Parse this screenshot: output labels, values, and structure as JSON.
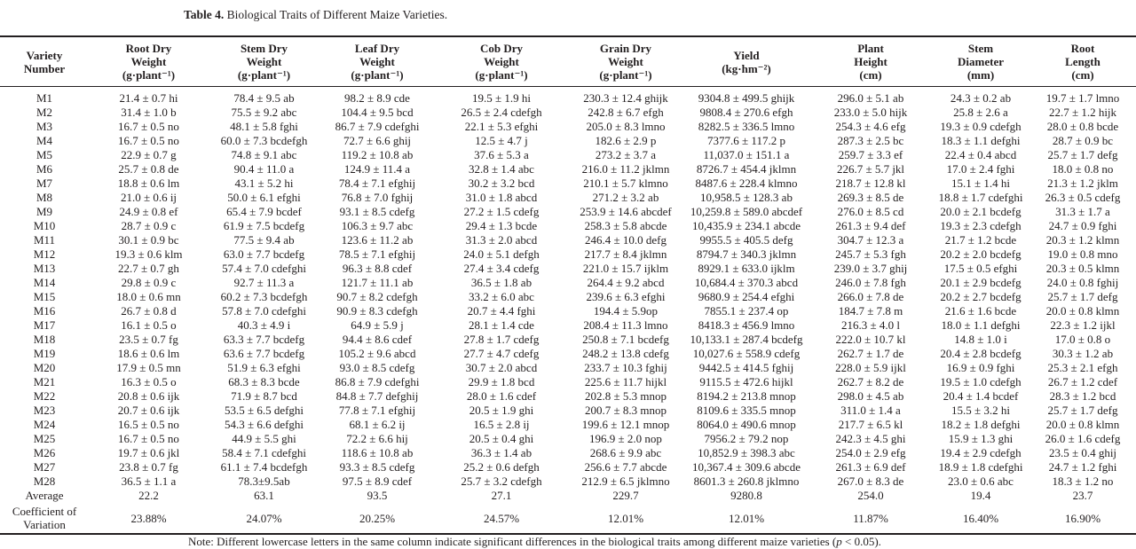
{
  "title": {
    "label": "Table 4.",
    "text": " Biological Traits of Different Maize Varieties."
  },
  "headers": [
    [
      "Variety",
      "Number",
      ""
    ],
    [
      "Root Dry",
      "Weight",
      "(g·plant⁻¹)"
    ],
    [
      "Stem Dry",
      "Weight",
      "(g·plant⁻¹)"
    ],
    [
      "Leaf Dry",
      "Weight",
      "(g·plant⁻¹)"
    ],
    [
      "Cob Dry",
      "Weight",
      "(g·plant⁻¹)"
    ],
    [
      "Grain Dry",
      "Weight",
      "(g·plant⁻¹)"
    ],
    [
      "Yield",
      "(kg·hm⁻²)",
      ""
    ],
    [
      "Plant",
      "Height",
      "(cm)"
    ],
    [
      "Stem",
      "Diameter",
      "(mm)"
    ],
    [
      "Root",
      "Length",
      "(cm)"
    ]
  ],
  "rows": [
    [
      "M1",
      "21.4 ± 0.7 hi",
      "78.4 ± 9.5 ab",
      "98.2 ± 8.9 cde",
      "19.5 ± 1.9 hi",
      "230.3 ± 12.4 ghijk",
      "9304.8 ± 499.5 ghijk",
      "296.0 ± 5.1 ab",
      "24.3 ± 0.2 ab",
      "19.7 ± 1.7 lmno"
    ],
    [
      "M2",
      "31.4 ± 1.0 b",
      "75.5 ± 9.2 abc",
      "104.4 ± 9.5 bcd",
      "26.5 ± 2.4 cdefgh",
      "242.8 ± 6.7 efgh",
      "9808.4 ± 270.6 efgh",
      "233.0 ± 5.0 hijk",
      "25.8 ± 2.6 a",
      "22.7 ± 1.2 hijk"
    ],
    [
      "M3",
      "16.7 ± 0.5 no",
      "48.1 ± 5.8 fghi",
      "86.7 ± 7.9 cdefghi",
      "22.1 ± 5.3 efghi",
      "205.0 ± 8.3 lmno",
      "8282.5 ± 336.5 lmno",
      "254.3 ± 4.6 efg",
      "19.3 ± 0.9 cdefgh",
      "28.0 ± 0.8 bcde"
    ],
    [
      "M4",
      "16.7 ± 0.5 no",
      "60.0 ± 7.3 bcdefgh",
      "72.7 ± 6.6 ghij",
      "12.5 ± 4.7 j",
      "182.6 ± 2.9 p",
      "7377.6 ± 117.2 p",
      "287.3 ± 2.5 bc",
      "18.3 ± 1.1 defghi",
      "28.7 ± 0.9 bc"
    ],
    [
      "M5",
      "22.9 ± 0.7 g",
      "74.8 ± 9.1 abc",
      "119.2 ± 10.8 ab",
      "37.6 ± 5.3 a",
      "273.2 ± 3.7 a",
      "11,037.0 ± 151.1 a",
      "259.7 ± 3.3 ef",
      "22.4 ± 0.4 abcd",
      "25.7 ± 1.7 defg"
    ],
    [
      "M6",
      "25.7 ± 0.8 de",
      "90.4 ± 11.0 a",
      "124.9 ± 11.4 a",
      "32.8 ± 1.4 abc",
      "216.0 ± 11.2 jklmn",
      "8726.7 ± 454.4 jklmn",
      "226.7 ± 5.7 jkl",
      "17.0 ± 2.4 fghi",
      "18.0 ± 0.8 no"
    ],
    [
      "M7",
      "18.8 ± 0.6 lm",
      "43.1 ± 5.2 hi",
      "78.4 ± 7.1 efghij",
      "30.2 ± 3.2 bcd",
      "210.1 ± 5.7 klmno",
      "8487.6 ± 228.4 klmno",
      "218.7 ± 12.8 kl",
      "15.1 ± 1.4 hi",
      "21.3 ± 1.2 jklm"
    ],
    [
      "M8",
      "21.0 ± 0.6 ij",
      "50.0 ± 6.1 efghi",
      "76.8 ± 7.0 fghij",
      "31.0 ± 1.8 abcd",
      "271.2 ± 3.2 ab",
      "10,958.5 ± 128.3 ab",
      "269.3 ± 8.5 de",
      "18.8 ± 1.7 cdefghi",
      "26.3 ± 0.5 cdefg"
    ],
    [
      "M9",
      "24.9 ± 0.8 ef",
      "65.4 ± 7.9 bcdef",
      "93.1 ± 8.5 cdefg",
      "27.2 ± 1.5 cdefg",
      "253.9 ± 14.6 abcdef",
      "10,259.8 ± 589.0 abcdef",
      "276.0 ± 8.5 cd",
      "20.0 ± 2.1 bcdefg",
      "31.3 ± 1.7 a"
    ],
    [
      "M10",
      "28.7 ± 0.9 c",
      "61.9 ± 7.5 bcdefg",
      "106.3 ± 9.7 abc",
      "29.4 ± 1.3 bcde",
      "258.3 ± 5.8 abcde",
      "10,435.9 ± 234.1 abcde",
      "261.3 ± 9.4 def",
      "19.3 ± 2.3 cdefgh",
      "24.7 ± 0.9 fghi"
    ],
    [
      "M11",
      "30.1 ± 0.9 bc",
      "77.5 ± 9.4 ab",
      "123.6 ± 11.2 ab",
      "31.3 ± 2.0 abcd",
      "246.4 ± 10.0 defg",
      "9955.5 ± 405.5 defg",
      "304.7 ± 12.3 a",
      "21.7 ± 1.2 bcde",
      "20.3 ± 1.2 klmn"
    ],
    [
      "M12",
      "19.3 ± 0.6 klm",
      "63.0 ± 7.7 bcdefg",
      "78.5 ± 7.1 efghij",
      "24.0 ± 5.1 defgh",
      "217.7 ± 8.4 jklmn",
      "8794.7 ± 340.3 jklmn",
      "245.7 ± 5.3 fgh",
      "20.2 ± 2.0 bcdefg",
      "19.0 ± 0.8 mno"
    ],
    [
      "M13",
      "22.7 ± 0.7 gh",
      "57.4 ± 7.0 cdefghi",
      "96.3 ± 8.8 cdef",
      "27.4 ± 3.4 cdefg",
      "221.0 ± 15.7 ijklm",
      "8929.1 ± 633.0 ijklm",
      "239.0 ± 3.7 ghij",
      "17.5 ± 0.5 efghi",
      "20.3 ± 0.5 klmn"
    ],
    [
      "M14",
      "29.8 ± 0.9 c",
      "92.7 ± 11.3 a",
      "121.7 ± 11.1 ab",
      "36.5 ± 1.8 ab",
      "264.4 ± 9.2 abcd",
      "10,684.4 ± 370.3 abcd",
      "246.0 ± 7.8 fgh",
      "20.1 ± 2.9 bcdefg",
      "24.0 ± 0.8 fghij"
    ],
    [
      "M15",
      "18.0 ± 0.6 mn",
      "60.2 ± 7.3 bcdefgh",
      "90.7 ± 8.2 cdefgh",
      "33.2 ± 6.0 abc",
      "239.6 ± 6.3 efghi",
      "9680.9 ± 254.4 efghi",
      "266.0 ± 7.8 de",
      "20.2 ± 2.7 bcdefg",
      "25.7 ± 1.7 defg"
    ],
    [
      "M16",
      "26.7 ± 0.8 d",
      "57.8 ± 7.0 cdefghi",
      "90.9 ± 8.3 cdefgh",
      "20.7 ± 4.4 fghi",
      "194.4 ± 5.9op",
      "7855.1 ± 237.4 op",
      "184.7 ± 7.8 m",
      "21.6 ± 1.6 bcde",
      "20.0 ± 0.8 klmn"
    ],
    [
      "M17",
      "16.1 ± 0.5 o",
      "40.3 ± 4.9 i",
      "64.9 ± 5.9 j",
      "28.1 ± 1.4 cde",
      "208.4 ± 11.3 lmno",
      "8418.3 ± 456.9 lmno",
      "216.3 ± 4.0 l",
      "18.0 ± 1.1 defghi",
      "22.3 ± 1.2 ijkl"
    ],
    [
      "M18",
      "23.5 ± 0.7 fg",
      "63.3 ± 7.7 bcdefg",
      "94.4 ± 8.6 cdef",
      "27.8 ± 1.7 cdefg",
      "250.8 ± 7.1 bcdefg",
      "10,133.1 ± 287.4 bcdefg",
      "222.0 ± 10.7 kl",
      "14.8 ± 1.0 i",
      "17.0 ± 0.8 o"
    ],
    [
      "M19",
      "18.6 ± 0.6 lm",
      "63.6 ± 7.7 bcdefg",
      "105.2 ± 9.6 abcd",
      "27.7 ± 4.7 cdefg",
      "248.2 ± 13.8 cdefg",
      "10,027.6 ± 558.9 cdefg",
      "262.7 ± 1.7 de",
      "20.4 ± 2.8 bcdefg",
      "30.3 ± 1.2 ab"
    ],
    [
      "M20",
      "17.9 ± 0.5 mn",
      "51.9 ± 6.3 efghi",
      "93.0 ± 8.5 cdefg",
      "30.7 ± 2.0 abcd",
      "233.7 ± 10.3 fghij",
      "9442.5 ± 414.5 fghij",
      "228.0 ± 5.9 ijkl",
      "16.9 ± 0.9 fghi",
      "25.3 ± 2.1 efgh"
    ],
    [
      "M21",
      "16.3 ± 0.5 o",
      "68.3 ± 8.3 bcde",
      "86.8 ± 7.9 cdefghi",
      "29.9 ± 1.8 bcd",
      "225.6 ± 11.7 hijkl",
      "9115.5 ± 472.6 hijkl",
      "262.7 ± 8.2 de",
      "19.5 ± 1.0 cdefgh",
      "26.7 ± 1.2 cdef"
    ],
    [
      "M22",
      "20.8 ± 0.6 ijk",
      "71.9 ± 8.7 bcd",
      "84.8 ± 7.7 defghij",
      "28.0 ± 1.6 cdef",
      "202.8 ± 5.3 mnop",
      "8194.2 ± 213.8 mnop",
      "298.0 ± 4.5 ab",
      "20.4 ± 1.4 bcdef",
      "28.3 ± 1.2 bcd"
    ],
    [
      "M23",
      "20.7 ± 0.6 ijk",
      "53.5 ± 6.5 defghi",
      "77.8 ± 7.1 efghij",
      "20.5 ± 1.9 ghi",
      "200.7 ± 8.3 mnop",
      "8109.6 ± 335.5 mnop",
      "311.0 ± 1.4 a",
      "15.5 ± 3.2 hi",
      "25.7 ± 1.7 defg"
    ],
    [
      "M24",
      "16.5 ± 0.5 no",
      "54.3 ± 6.6 defghi",
      "68.1 ± 6.2 ij",
      "16.5 ± 2.8 ij",
      "199.6 ± 12.1 mnop",
      "8064.0 ± 490.6 mnop",
      "217.7 ± 6.5 kl",
      "18.2 ± 1.8 defghi",
      "20.0 ± 0.8 klmn"
    ],
    [
      "M25",
      "16.7 ± 0.5 no",
      "44.9 ± 5.5 ghi",
      "72.2 ± 6.6 hij",
      "20.5 ± 0.4 ghi",
      "196.9 ± 2.0 nop",
      "7956.2 ± 79.2 nop",
      "242.3 ± 4.5 ghi",
      "15.9 ± 1.3 ghi",
      "26.0 ± 1.6 cdefg"
    ],
    [
      "M26",
      "19.7 ± 0.6 jkl",
      "58.4 ± 7.1 cdefghi",
      "118.6 ± 10.8 ab",
      "36.3 ± 1.4 ab",
      "268.6 ± 9.9 abc",
      "10,852.9 ± 398.3 abc",
      "254.0 ± 2.9 efg",
      "19.4 ± 2.9 cdefgh",
      "23.5 ± 0.4 ghij"
    ],
    [
      "M27",
      "23.8 ± 0.7 fg",
      "61.1 ± 7.4 bcdefgh",
      "93.3 ± 8.5 cdefg",
      "25.2 ± 0.6 defgh",
      "256.6 ± 7.7 abcde",
      "10,367.4 ± 309.6 abcde",
      "261.3 ± 6.9 def",
      "18.9 ± 1.8 cdefghi",
      "24.7 ± 1.2 fghi"
    ],
    [
      "M28",
      "36.5 ± 1.1 a",
      "78.3±9.5ab",
      "97.5 ± 8.9 cdef",
      "25.7 ± 3.2 cdefgh",
      "212.9 ± 6.5 jklmno",
      "8601.3 ± 260.8 jklmno",
      "267.0 ± 8.3 de",
      "23.0 ± 0.6 abc",
      "18.3 ± 1.2 no"
    ]
  ],
  "average": [
    "Average",
    "22.2",
    "63.1",
    "93.5",
    "27.1",
    "229.7",
    "9280.8",
    "254.0",
    "19.4",
    "23.7"
  ],
  "cv": [
    "Coefficient of Variation",
    "23.88%",
    "24.07%",
    "20.25%",
    "24.57%",
    "12.01%",
    "12.01%",
    "11.87%",
    "16.40%",
    "16.90%"
  ],
  "note": {
    "before": "Note: Different lowercase letters in the same column indicate significant differences in the biological traits among different maize varieties (",
    "p": "p",
    "after": " < 0.05)."
  }
}
